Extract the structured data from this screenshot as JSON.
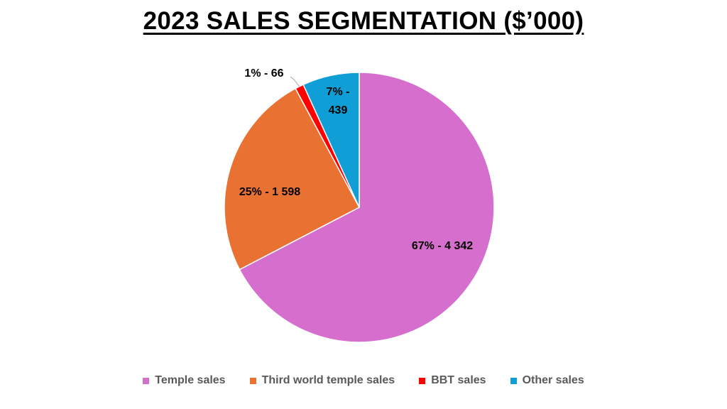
{
  "chart_data": {
    "type": "pie",
    "title": "2023 SALES SEGMENTATION ($’000)",
    "slices": [
      {
        "name": "Temple sales",
        "value": 4342,
        "percent": 67,
        "label_line1": "67% -  4 342",
        "label_line2": "",
        "color": "#D56ECC"
      },
      {
        "name": "Third world temple sales",
        "value": 1598,
        "percent": 25,
        "label_line1": "25% -  1 598",
        "label_line2": "",
        "color": "#E97132"
      },
      {
        "name": "BBT sales",
        "value": 66,
        "percent": 1,
        "label_line1": "1% -  66",
        "label_line2": "",
        "color": "#FF0000"
      },
      {
        "name": "Other sales",
        "value": 439,
        "percent": 7,
        "label_line1": "7% -",
        "label_line2": "439",
        "color": "#0F9ED5"
      }
    ],
    "legend_position": "bottom"
  }
}
